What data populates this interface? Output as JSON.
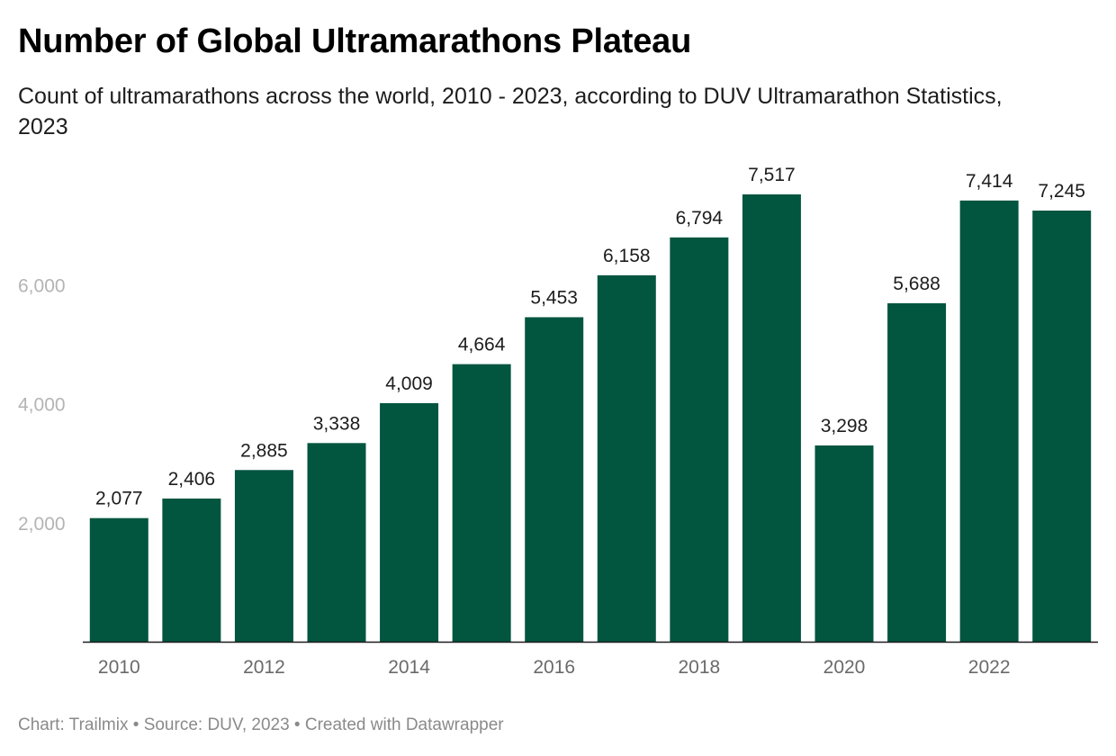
{
  "title": "Number of Global Ultramarathons Plateau",
  "subtitle": "Count of ultramarathons across the world, 2010 - 2023, according to DUV Ultramarathon Statistics, 2023",
  "footer": {
    "chart_label": "Chart: Trailmix",
    "separator": " • ",
    "source": "Source: DUV, 2023",
    "credit": "Created with Datawrapper"
  },
  "colors": {
    "bar": "#02553f",
    "axis_line": "#1d1d1d",
    "y_tick_label": "#b4b4b4",
    "x_tick_label": "#6a6a6a",
    "value_label": "#1d1d1d",
    "footer_text": "#8a8a8a"
  },
  "chart_data": {
    "type": "bar",
    "categories": [
      "2010",
      "2011",
      "2012",
      "2013",
      "2014",
      "2015",
      "2016",
      "2017",
      "2018",
      "2019",
      "2020",
      "2021",
      "2022",
      "2023"
    ],
    "values": [
      2077,
      2406,
      2885,
      3338,
      4009,
      4664,
      5453,
      6158,
      6794,
      7517,
      3298,
      5688,
      7414,
      7245
    ],
    "value_labels": [
      "2,077",
      "2,406",
      "2,885",
      "3,338",
      "4,009",
      "4,664",
      "5,453",
      "6,158",
      "6,794",
      "7,517",
      "3,298",
      "5,688",
      "7,414",
      "7,245"
    ],
    "x_tick_labels": [
      "2010",
      "",
      "2012",
      "",
      "2014",
      "",
      "2016",
      "",
      "2018",
      "",
      "2020",
      "",
      "2022",
      ""
    ],
    "y_ticks": [
      2000,
      4000,
      6000
    ],
    "y_tick_labels": [
      "2,000",
      "4,000",
      "6,000"
    ],
    "ylim": [
      0,
      7517
    ],
    "xlabel": "",
    "ylabel": "",
    "grid": false,
    "legend": "none"
  }
}
